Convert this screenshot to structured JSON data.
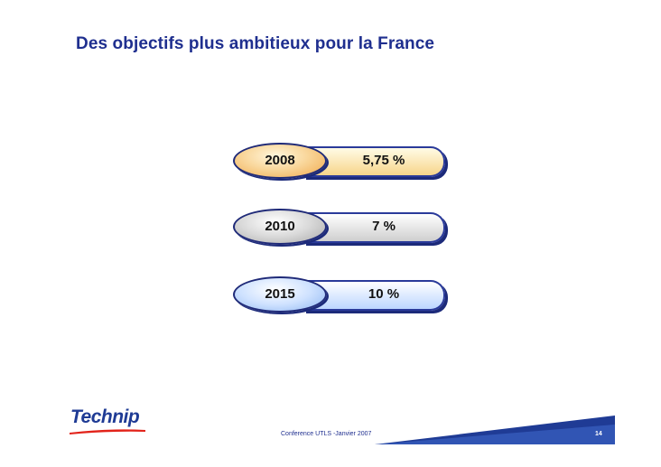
{
  "title": "Des objectifs plus ambitieux pour la France",
  "targets": [
    {
      "year": "2008",
      "value": "5,75 %",
      "color": "#f0a84a"
    },
    {
      "year": "2010",
      "value": "7 %",
      "color": "#a9a9a9"
    },
    {
      "year": "2015",
      "value": "10 %",
      "color": "#8eb6f2"
    }
  ],
  "footer": {
    "logo": "Technip",
    "text": "Conference UTLS  -Janvier 2007",
    "page": "14",
    "accent": "#1f3b95"
  }
}
